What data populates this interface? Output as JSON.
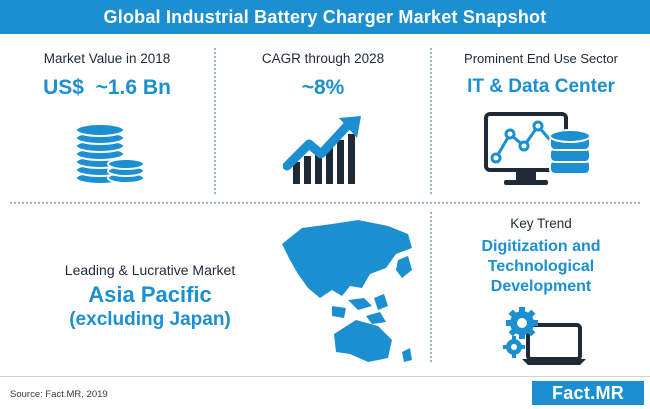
{
  "header": {
    "title": "Global Industrial Battery Charger Market Snapshot"
  },
  "market_value": {
    "label": "Market Value in 2018",
    "value": "US$  ~1.6 Bn"
  },
  "cagr": {
    "label": "CAGR through 2028",
    "value": "~8%"
  },
  "end_use": {
    "label": "Prominent End Use Sector",
    "value": "IT & Data Center"
  },
  "lucrative": {
    "label": "Leading & Lucrative Market",
    "value_line1": "Asia Pacific",
    "value_line2": "(excluding Japan)"
  },
  "key_trend": {
    "label": "Key Trend",
    "value_line1": "Digitization and",
    "value_line2": "Technological",
    "value_line3": "Development"
  },
  "footer": {
    "source": "Source: Fact.MR, 2019",
    "logo": "Fact.MR"
  },
  "colors": {
    "accent": "#1b8fd0",
    "dark": "#1e2a38"
  },
  "icons": [
    "coins-stack-icon",
    "growth-chart-icon",
    "monitor-database-icon",
    "asia-pacific-map-icon",
    "gears-laptop-icon"
  ]
}
